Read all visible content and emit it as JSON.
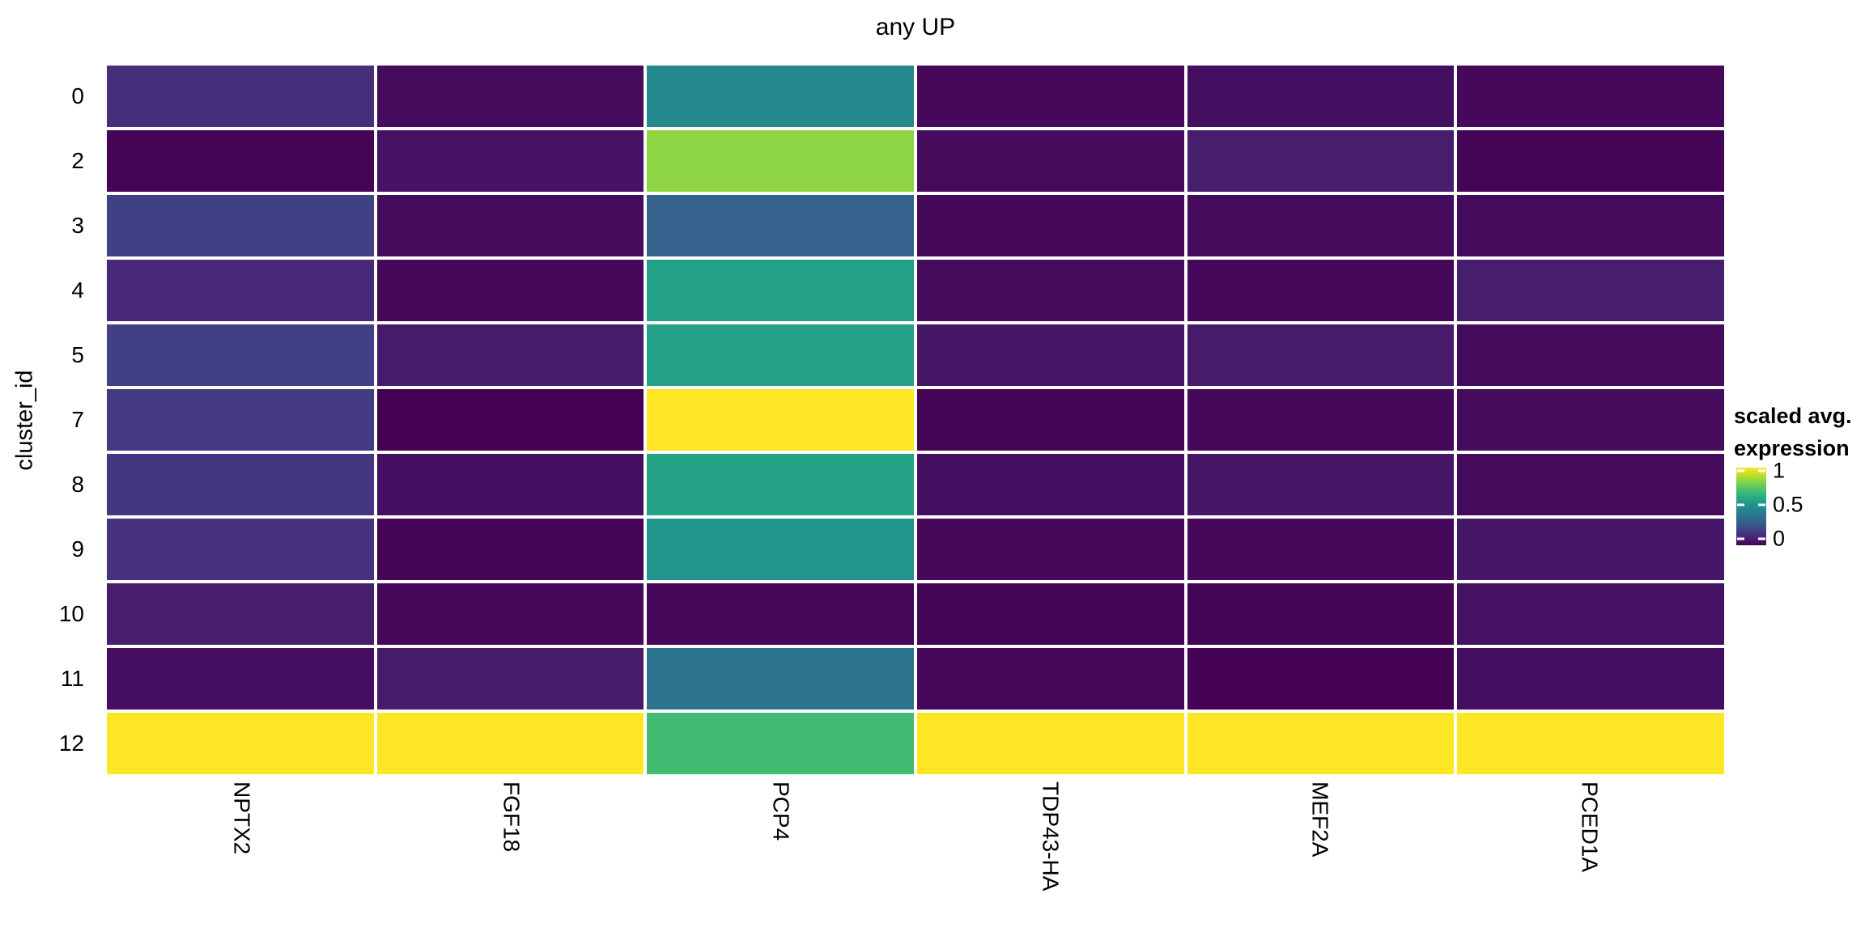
{
  "title": "any UP",
  "y_axis_title": "cluster_id",
  "legend": {
    "title_line1": "scaled avg.",
    "title_line2": "expression",
    "tick_labels": [
      "1",
      "0.5",
      "0"
    ],
    "tick_values": [
      1,
      0.5,
      0
    ]
  },
  "colors": {
    "background": "#FFFFFF",
    "text": "#000000",
    "tile_border": "#FFFFFF"
  },
  "chart_data": {
    "type": "heatmap",
    "title": "any UP",
    "xlabel": "",
    "ylabel": "cluster_id",
    "legend_title": "scaled avg. expression",
    "value_range": [
      0,
      1
    ],
    "legend_position": "right",
    "grid": false,
    "columns": [
      "NPTX2",
      "FGF18",
      "PCP4",
      "TDP43-HA",
      "MEF2A",
      "PCED1A"
    ],
    "rows": [
      "0",
      "2",
      "3",
      "4",
      "5",
      "7",
      "8",
      "9",
      "10",
      "11",
      "12"
    ],
    "values": [
      [
        0.13,
        0.03,
        0.47,
        0.02,
        0.04,
        0.02
      ],
      [
        0.01,
        0.05,
        0.83,
        0.03,
        0.08,
        0.01
      ],
      [
        0.19,
        0.03,
        0.31,
        0.02,
        0.03,
        0.03
      ],
      [
        0.11,
        0.02,
        0.57,
        0.03,
        0.02,
        0.08
      ],
      [
        0.19,
        0.07,
        0.57,
        0.06,
        0.07,
        0.03
      ],
      [
        0.17,
        0.0,
        1.0,
        0.01,
        0.02,
        0.03
      ],
      [
        0.16,
        0.04,
        0.58,
        0.04,
        0.06,
        0.03
      ],
      [
        0.14,
        0.01,
        0.52,
        0.02,
        0.02,
        0.06
      ],
      [
        0.08,
        0.02,
        0.02,
        0.01,
        0.01,
        0.05
      ],
      [
        0.04,
        0.07,
        0.38,
        0.02,
        0.0,
        0.04
      ],
      [
        1.0,
        1.0,
        0.69,
        1.0,
        1.0,
        1.0
      ]
    ],
    "colormap": "viridis",
    "colormap_anchors": [
      [
        0.0,
        "#440154"
      ],
      [
        0.111,
        "#482878"
      ],
      [
        0.222,
        "#3E4A89"
      ],
      [
        0.333,
        "#31688E"
      ],
      [
        0.444,
        "#26828E"
      ],
      [
        0.556,
        "#1F9E89"
      ],
      [
        0.667,
        "#35B779"
      ],
      [
        0.778,
        "#6DCD59"
      ],
      [
        0.889,
        "#B4DE2C"
      ],
      [
        1.0,
        "#FDE725"
      ]
    ]
  }
}
